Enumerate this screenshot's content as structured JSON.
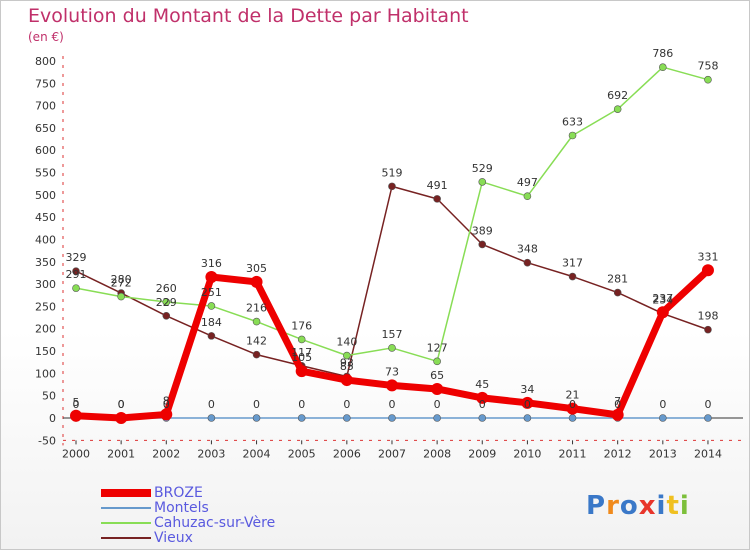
{
  "title": "Evolution du Montant de la Dette par Habitant",
  "subtitle": "(en €)",
  "logo": "Proxiti",
  "chart_data": {
    "type": "line",
    "title": "Evolution du Montant de la Dette par Habitant",
    "ylabel": "(en €)",
    "xlabel": "",
    "ylim": [
      -50,
      800
    ],
    "yticks": [
      -50,
      0,
      50,
      100,
      150,
      200,
      250,
      300,
      350,
      400,
      450,
      500,
      550,
      600,
      650,
      700,
      750,
      800
    ],
    "x": [
      "2000",
      "2001",
      "2002",
      "2003",
      "2004",
      "2005",
      "2006",
      "2007",
      "2008",
      "2009",
      "2010",
      "2011",
      "2012",
      "2013",
      "2014"
    ],
    "grid": false,
    "legend_position": "bottom-left",
    "series": [
      {
        "name": "BROZE",
        "color": "#ee0000",
        "values": [
          5,
          0,
          8,
          316,
          305,
          105,
          85,
          73,
          65,
          45,
          34,
          21,
          7,
          237,
          331
        ]
      },
      {
        "name": "Montels",
        "color": "#6699cc",
        "values": [
          0,
          0,
          0,
          0,
          0,
          0,
          0,
          0,
          0,
          0,
          0,
          0,
          0,
          0,
          0
        ]
      },
      {
        "name": "Cahuzac-sur-Vère",
        "color": "#88dd55",
        "values": [
          291,
          272,
          260,
          251,
          216,
          176,
          140,
          157,
          127,
          529,
          497,
          633,
          692,
          786,
          758
        ]
      },
      {
        "name": "Vieux",
        "color": "#772222",
        "values": [
          329,
          280,
          229,
          184,
          142,
          117,
          93,
          519,
          491,
          389,
          348,
          317,
          281,
          234,
          198
        ]
      }
    ]
  }
}
